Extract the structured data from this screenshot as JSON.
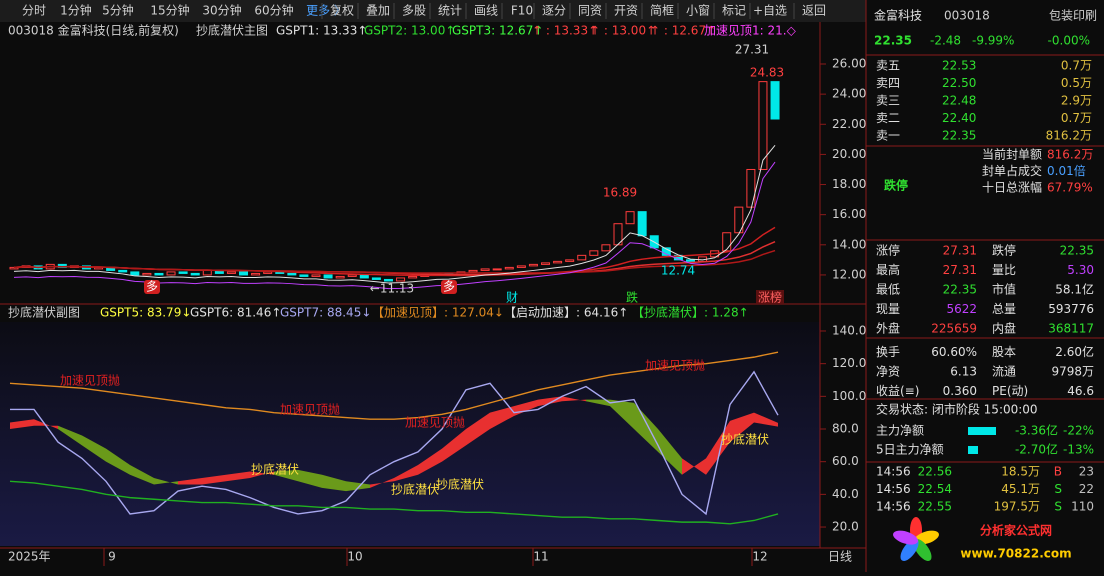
{
  "toolbar": [
    "分时",
    "1分钟",
    "5分钟",
    "15分钟",
    "30分钟",
    "60分钟",
    "更多 〉",
    "复权",
    "叠加",
    "多股",
    "统计",
    "画线",
    "F10",
    "逐分",
    "同资",
    "开资",
    "简框",
    "小窗",
    "标记",
    "+自选",
    "返回"
  ],
  "main_chart": {
    "type": "candlestick",
    "title": "003018 金富科技(日线,前复权)",
    "indicator": "抄底潜伏主图",
    "legend": [
      "GSPT1: 13.33↑",
      "GSPT2: 13.00↑",
      "GSPT3: 12.67↑",
      "↑ : 13.33↑",
      "↑ : 13.00↑",
      "↑ : 12.67↑",
      "加速见顶1: 21.◇"
    ],
    "closes": [
      12.5,
      12.6,
      12.4,
      12.7,
      12.5,
      12.6,
      12.4,
      12.5,
      12.3,
      12.2,
      12.0,
      12.1,
      12.0,
      12.2,
      12.1,
      12.0,
      12.3,
      12.1,
      12.2,
      12.0,
      12.1,
      12.2,
      12.1,
      12.0,
      11.9,
      12.0,
      11.8,
      11.9,
      12.0,
      11.8,
      11.7,
      11.6,
      11.8,
      11.9,
      12.0,
      12.1,
      12.0,
      12.2,
      12.3,
      12.4,
      12.4,
      12.5,
      12.6,
      12.7,
      12.8,
      12.9,
      13.0,
      13.3,
      13.6,
      14.0,
      15.4,
      16.2,
      14.6,
      13.8,
      13.3,
      13.0,
      12.9,
      13.2,
      13.6,
      14.8,
      16.5,
      19.0,
      24.83,
      22.35
    ],
    "ylim": [
      11.0,
      28.39
    ],
    "yticks": [
      {
        "value": 12,
        "label": "12.00"
      },
      {
        "value": 14,
        "label": "14.00"
      },
      {
        "value": 16,
        "label": "16.00"
      },
      {
        "value": 18,
        "label": "18.00"
      },
      {
        "value": 20,
        "label": "20.00"
      },
      {
        "value": 22,
        "label": "22.00"
      },
      {
        "value": 24,
        "label": "24.00"
      },
      {
        "value": 26,
        "label": "26.00"
      }
    ],
    "annotations": [
      "27.31",
      "24.83",
      "16.89",
      "12.74",
      "←11.13",
      "多",
      "多",
      "财",
      "跌",
      "涨榜"
    ]
  },
  "sub_chart": {
    "type": "line",
    "title": "抄底潜伏副图",
    "legend": [
      "GSPT5: 83.79↓",
      "GSPT6: 81.46↑",
      "GSPT7: 88.45↓",
      "【加速见顶】: 127.04↓",
      "【启动加速】: 64.16↑",
      "【抄底潜伏】: 1.28↑"
    ],
    "ylim": [
      9,
      145.5
    ],
    "yticks": [
      {
        "value": 20,
        "label": "20.0"
      },
      {
        "value": 40,
        "label": "40.0"
      },
      {
        "value": 60,
        "label": "60.0"
      },
      {
        "value": 80,
        "label": "80.0"
      },
      {
        "value": 100,
        "label": "100.0"
      },
      {
        "value": 120,
        "label": "120.0"
      },
      {
        "value": 140,
        "label": "140.0"
      }
    ],
    "series": [
      {
        "name": "GSPT5",
        "color": "#e83030",
        "values": [
          84,
          86,
          80,
          70,
          60,
          52,
          46,
          48,
          50,
          52,
          54,
          52,
          48,
          44,
          42,
          44,
          50,
          58,
          68,
          80,
          90,
          94,
          98,
          100,
          97,
          94,
          80,
          66,
          52,
          62,
          85,
          90,
          83.79
        ]
      },
      {
        "name": "GSPT6",
        "color": "#6a9a1a",
        "values": [
          80,
          82,
          82,
          76,
          68,
          58,
          50,
          46,
          46,
          48,
          50,
          54,
          55,
          52,
          48,
          46,
          48,
          52,
          60,
          70,
          80,
          88,
          94,
          97,
          98,
          98,
          96,
          80,
          62,
          52,
          72,
          84,
          81.46
        ]
      },
      {
        "name": "GSPT7",
        "color": "#a8a8f0",
        "values": [
          92,
          92,
          72,
          62,
          48,
          28,
          30,
          42,
          45,
          43,
          38,
          32,
          28,
          30,
          36,
          52,
          60,
          66,
          80,
          104,
          108,
          90,
          92,
          100,
          106,
          96,
          98,
          70,
          40,
          28,
          95,
          115,
          88.45
        ]
      },
      {
        "name": "加速见顶",
        "color": "#e08a20",
        "values": [
          108,
          107,
          106,
          105,
          103,
          101,
          99,
          97,
          95,
          93,
          92,
          90,
          89,
          88,
          87,
          86,
          86,
          87,
          89,
          92,
          96,
          100,
          104,
          107,
          110,
          113,
          115,
          117,
          119,
          120,
          122,
          124,
          127.04
        ]
      },
      {
        "name": "底线",
        "color": "#20b020",
        "values": [
          48,
          47,
          45,
          43,
          40,
          38,
          37,
          36,
          35,
          35,
          34,
          33,
          33,
          32,
          32,
          31,
          31,
          30,
          30,
          29,
          29,
          28,
          27,
          26,
          26,
          25,
          25,
          24,
          23,
          23,
          22,
          24,
          28
        ]
      }
    ],
    "annotations": [
      "加速见顶抛",
      "加速见顶抛",
      "加速见顶抛",
      "加速见顶抛",
      "抄底潜伏",
      "抄底潜伏",
      "抄底潜伏",
      "抄底潜伏"
    ]
  },
  "x_labels": [
    "2025年",
    "9",
    "10",
    "11",
    "12",
    "日线"
  ],
  "panel": {
    "name": "金富科技",
    "code": "003018",
    "sector": "包装印刷",
    "price": "22.35",
    "change": "-2.48",
    "pct": "-9.99%",
    "other": "-0.00%",
    "book": [
      [
        "卖五",
        "22.53",
        "0.7万"
      ],
      [
        "卖四",
        "22.50",
        "0.5万"
      ],
      [
        "卖三",
        "22.48",
        "2.9万"
      ],
      [
        "卖二",
        "22.40",
        "0.7万"
      ],
      [
        "卖一",
        "22.35",
        "816.2万"
      ]
    ],
    "seal": [
      [
        "当前封单额",
        "816.2万"
      ],
      [
        "封单占成交",
        "0.01倍"
      ],
      [
        "十日总涨幅",
        "67.79%"
      ]
    ],
    "limit": "跌停",
    "stats": [
      [
        "涨停",
        "27.31",
        "跌停",
        "22.35"
      ],
      [
        "最高",
        "27.31",
        "量比",
        "5.30"
      ],
      [
        "最低",
        "22.35",
        "市值",
        "58.1亿"
      ],
      [
        "现量",
        "5622",
        "总量",
        "593776"
      ],
      [
        "外盘",
        "225659",
        "内盘",
        "368117"
      ],
      [
        "换手",
        "60.60%",
        "股本",
        "2.60亿"
      ],
      [
        "净资",
        "6.13",
        "流通",
        "9798万"
      ],
      [
        "收益(≡)",
        "0.360",
        "PE(动)",
        "46.6"
      ]
    ],
    "status": "交易状态: 闭市阶段 15:00:00",
    "flow": [
      [
        "主力净额",
        "-3.36亿",
        "-22%"
      ],
      [
        "5日主力净额",
        "-2.70亿",
        "-13%"
      ]
    ],
    "ticks": [
      [
        "14:56",
        "22.56",
        "18.5万",
        "B",
        "23"
      ],
      [
        "14:56",
        "22.54",
        "45.1万",
        "S",
        "22"
      ],
      [
        "14:56",
        "22.55",
        "197.5万",
        "S",
        "110"
      ]
    ],
    "watermark": "分析家公式网",
    "url": "www.70822.com"
  }
}
